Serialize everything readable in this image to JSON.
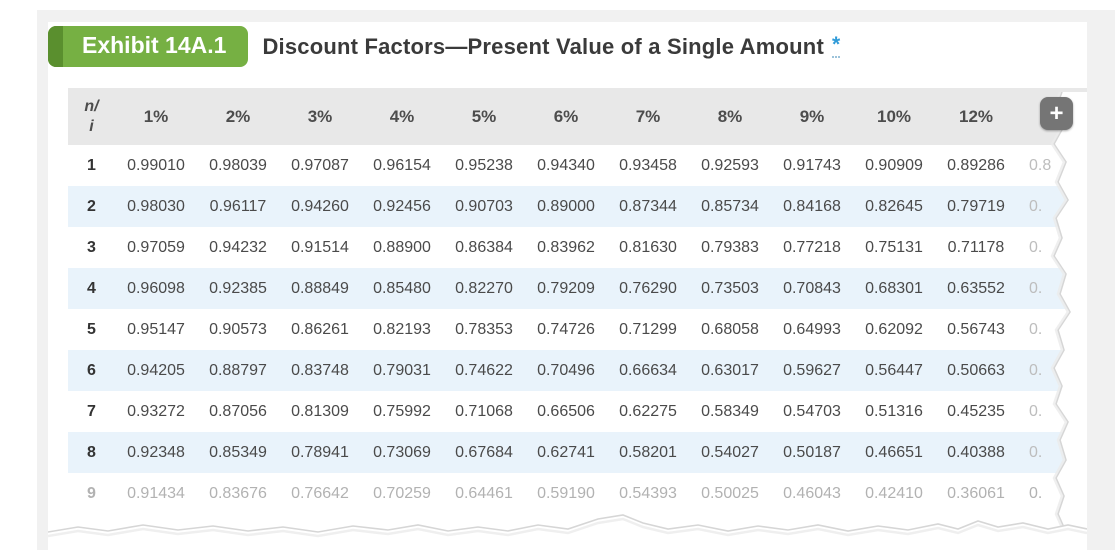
{
  "header": {
    "badge": "Exhibit 14A.1",
    "title": "Discount Factors—Present Value of a Single Amount",
    "asterisk": "*"
  },
  "table": {
    "corner": {
      "line1": "n/",
      "line2": "i"
    },
    "columns": [
      "1%",
      "2%",
      "3%",
      "4%",
      "5%",
      "6%",
      "7%",
      "8%",
      "9%",
      "10%",
      "12%"
    ],
    "rows": [
      {
        "n": "1",
        "values": [
          "0.99010",
          "0.98039",
          "0.97087",
          "0.96154",
          "0.95238",
          "0.94340",
          "0.93458",
          "0.92593",
          "0.91743",
          "0.90909",
          "0.89286"
        ],
        "fragment": "0.8"
      },
      {
        "n": "2",
        "values": [
          "0.98030",
          "0.96117",
          "0.94260",
          "0.92456",
          "0.90703",
          "0.89000",
          "0.87344",
          "0.85734",
          "0.84168",
          "0.82645",
          "0.79719"
        ],
        "fragment": "0."
      },
      {
        "n": "3",
        "values": [
          "0.97059",
          "0.94232",
          "0.91514",
          "0.88900",
          "0.86384",
          "0.83962",
          "0.81630",
          "0.79383",
          "0.77218",
          "0.75131",
          "0.71178"
        ],
        "fragment": "0."
      },
      {
        "n": "4",
        "values": [
          "0.96098",
          "0.92385",
          "0.88849",
          "0.85480",
          "0.82270",
          "0.79209",
          "0.76290",
          "0.73503",
          "0.70843",
          "0.68301",
          "0.63552"
        ],
        "fragment": "0."
      },
      {
        "n": "5",
        "values": [
          "0.95147",
          "0.90573",
          "0.86261",
          "0.82193",
          "0.78353",
          "0.74726",
          "0.71299",
          "0.68058",
          "0.64993",
          "0.62092",
          "0.56743"
        ],
        "fragment": "0."
      },
      {
        "n": "6",
        "values": [
          "0.94205",
          "0.88797",
          "0.83748",
          "0.79031",
          "0.74622",
          "0.70496",
          "0.66634",
          "0.63017",
          "0.59627",
          "0.56447",
          "0.50663"
        ],
        "fragment": "0."
      },
      {
        "n": "7",
        "values": [
          "0.93272",
          "0.87056",
          "0.81309",
          "0.75992",
          "0.71068",
          "0.66506",
          "0.62275",
          "0.58349",
          "0.54703",
          "0.51316",
          "0.45235"
        ],
        "fragment": "0."
      },
      {
        "n": "8",
        "values": [
          "0.92348",
          "0.85349",
          "0.78941",
          "0.73069",
          "0.67684",
          "0.62741",
          "0.58201",
          "0.54027",
          "0.50187",
          "0.46651",
          "0.40388"
        ],
        "fragment": "0."
      },
      {
        "n": "9",
        "values": [
          "0.91434",
          "0.83676",
          "0.76642",
          "0.70259",
          "0.64461",
          "0.59190",
          "0.54393",
          "0.50025",
          "0.46043",
          "0.42410",
          "0.36061"
        ],
        "fragment": "0."
      }
    ],
    "expand_icon": "+"
  },
  "colors": {
    "badge_green": "#76b043",
    "badge_green_dark": "#5a8f2e",
    "accent_blue": "#2e9ad8",
    "header_bg": "#e8e8e8",
    "row_alt_bg": "#e9f3fb",
    "page_gray": "#f1f1f1",
    "plus_bg": "#757575",
    "tear_line": "#cfcfcf"
  }
}
